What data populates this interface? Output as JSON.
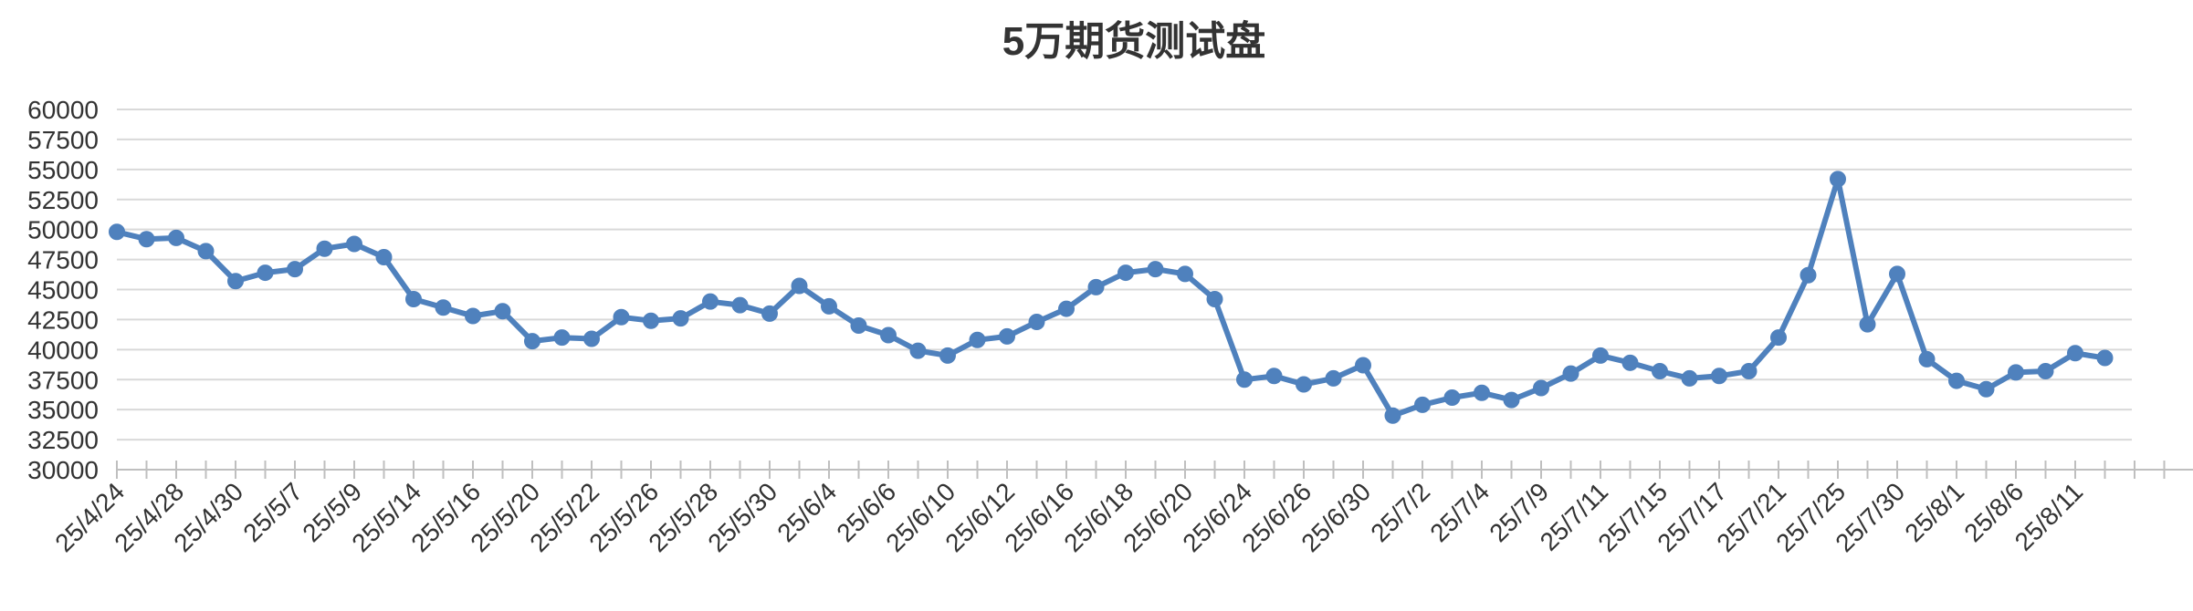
{
  "chart_data": {
    "type": "line",
    "title": "5万期货测试盘",
    "xlabel": "",
    "ylabel": "",
    "ylim": [
      30000,
      60000
    ],
    "y_ticks": [
      30000,
      32500,
      35000,
      37500,
      40000,
      42500,
      45000,
      47500,
      50000,
      52500,
      55000,
      57500,
      60000
    ],
    "x_tick_labels": [
      "25/4/24",
      "25/4/28",
      "25/4/30",
      "25/5/7",
      "25/5/9",
      "25/5/14",
      "25/5/16",
      "25/5/20",
      "25/5/22",
      "25/5/26",
      "25/5/28",
      "25/5/30",
      "25/6/4",
      "25/6/6",
      "25/6/10",
      "25/6/12",
      "25/6/16",
      "25/6/18",
      "25/6/20",
      "25/6/24",
      "25/6/26",
      "25/6/30",
      "25/7/2",
      "25/7/4",
      "25/7/9",
      "25/7/11",
      "25/7/15",
      "25/7/17",
      "25/7/21",
      "25/7/25",
      "25/7/30",
      "25/8/1",
      "25/8/6",
      "25/8/11"
    ],
    "grid": true,
    "legend": "none",
    "line_color": "#4f81bd",
    "series": [
      {
        "values": [
          49800,
          49200,
          49300,
          48200,
          45700,
          46400,
          46700,
          48400,
          48800,
          47700,
          44200,
          43500,
          42800,
          43200,
          40700,
          41000,
          40900,
          42700,
          42400,
          42600,
          44000,
          43700,
          43000,
          45300,
          43600,
          42000,
          41200,
          39900,
          39500,
          40800,
          41100,
          42300,
          43400,
          45200,
          46400,
          46700,
          46300,
          44200,
          37500,
          37800,
          37100,
          37600,
          38700,
          34500,
          35400,
          36000,
          36400,
          35800,
          36800,
          38000,
          39500,
          38900,
          38200,
          37600,
          37800,
          38200,
          41000,
          46200,
          54200,
          42100,
          46300,
          39200,
          37400,
          36700,
          38100,
          38200,
          39700,
          39300
        ]
      }
    ]
  }
}
